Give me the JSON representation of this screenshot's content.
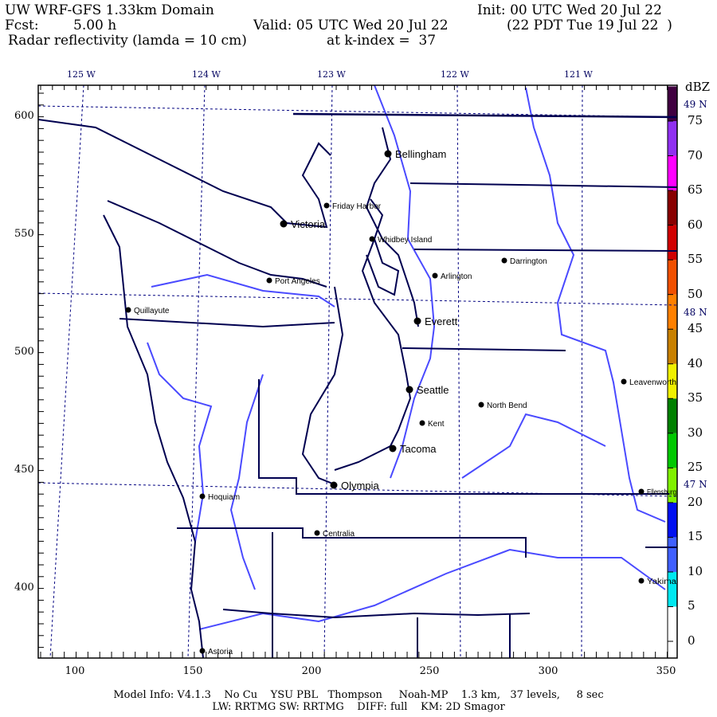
{
  "header": {
    "title": "UW WRF-GFS 1.33km Domain",
    "init": "Init: 00 UTC Wed 20 Jul 22",
    "fcst_label": "Fcst:",
    "fcst_value": "5.00 h",
    "valid": "Valid: 05 UTC Wed 20 Jul 22",
    "local": "(22 PDT Tue 19 Jul 22  )",
    "field": "Radar reflectivity (lamda = 10 cm)",
    "level": "at k-index =  37"
  },
  "map": {
    "lon_labels": [
      "125 W",
      "124 W",
      "123 W",
      "122 W",
      "121 W"
    ],
    "lat_labels": [
      "49 N",
      "48 N",
      "47 N"
    ],
    "x_ticks": [
      "100",
      "150",
      "200",
      "250",
      "300",
      "350"
    ],
    "y_ticks": [
      "600",
      "550",
      "500",
      "450",
      "400"
    ],
    "x_range": [
      84.5,
      355
    ],
    "y_range": [
      370,
      613
    ],
    "colors": {
      "coast": "#000050",
      "rivers": "#4a4aff",
      "grid": "#000080"
    },
    "cities": [
      "Bellingham",
      "Friday Harbor",
      "Victoria",
      "Whidbey Island",
      "Darrington",
      "Arlington",
      "Port Angeles",
      "Quillayute",
      "Everett",
      "Seattle",
      "North Bend",
      "Kent",
      "Leavenworth",
      "Tacoma",
      "Olympia",
      "Ellensburg",
      "Hoquiam",
      "Centralia",
      "Yakima",
      "Astoria"
    ]
  },
  "colorbar": {
    "unit": "dBZ",
    "labels": [
      "0",
      "5",
      "10",
      "15",
      "20",
      "25",
      "30",
      "35",
      "40",
      "45",
      "50",
      "55",
      "60",
      "65",
      "70",
      "75"
    ],
    "colors": [
      "#ffffff",
      "#00e8f0",
      "#4060ff",
      "#0010f0",
      "#80f000",
      "#00c800",
      "#008000",
      "#f0f000",
      "#c88000",
      "#ff8000",
      "#f05000",
      "#d00000",
      "#880000",
      "#ff00ff",
      "#9030f0",
      "#400040"
    ]
  },
  "footer": {
    "line1": "Model Info: V4.1.3    No Cu    YSU PBL   Thompson     Noah-MP    1.3 km,   37 levels,     8 sec",
    "line2": "LW: RRTMG SW: RRTMG    DIFF: full    KM: 2D Smagor"
  }
}
